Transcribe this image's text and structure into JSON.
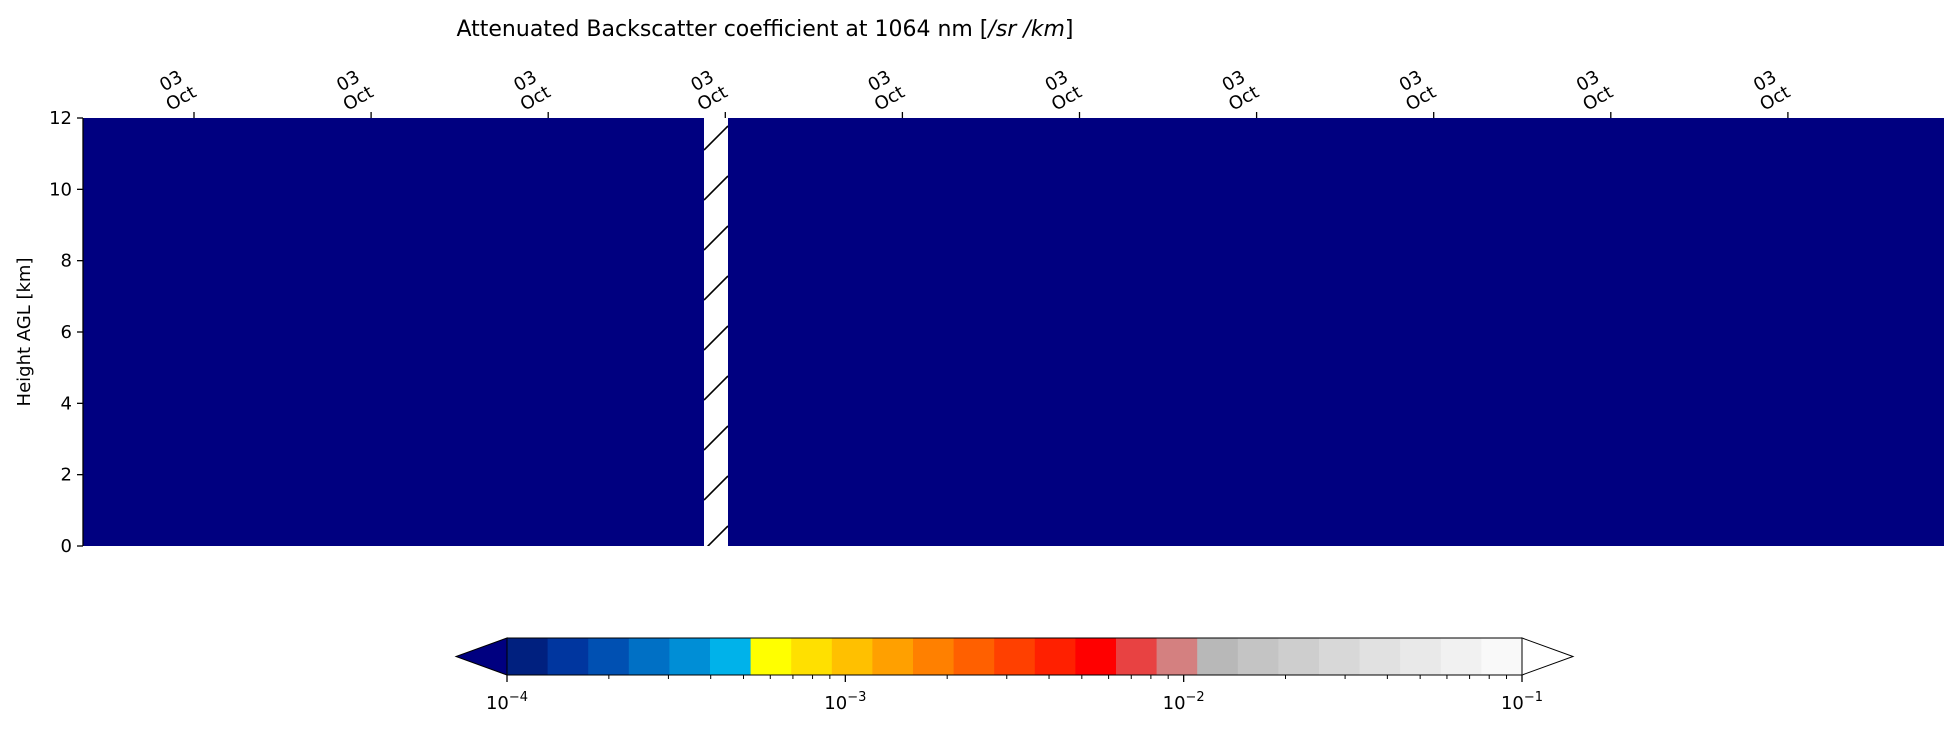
{
  "chart_data": {
    "type": "heatmap",
    "title": "Attenuated Backscatter coefficient at 1064 nm [",
    "title_units": "/sr /km",
    "title_close": "]",
    "ylabel": "Height AGL [km]",
    "xlabel": "",
    "ylim": [
      0,
      12
    ],
    "yticks": [
      0,
      2,
      4,
      6,
      8,
      10,
      12
    ],
    "x_axis_position": "top",
    "x_tick_labels": [
      {
        "day": "03",
        "month": "Oct"
      },
      {
        "day": "03",
        "month": "Oct"
      },
      {
        "day": "03",
        "month": "Oct"
      },
      {
        "day": "03",
        "month": "Oct"
      },
      {
        "day": "03",
        "month": "Oct"
      },
      {
        "day": "03",
        "month": "Oct"
      },
      {
        "day": "03",
        "month": "Oct"
      },
      {
        "day": "03",
        "month": "Oct"
      },
      {
        "day": "03",
        "month": "Oct"
      },
      {
        "day": "03",
        "month": "Oct"
      }
    ],
    "field_color": "#000080",
    "missing_data_hatch": true,
    "colorbar": {
      "orientation": "horizontal",
      "placement": "bottom",
      "scale": "log",
      "range": [
        0.0001,
        0.1
      ],
      "extend": "both",
      "tick_labels": [
        {
          "base": "10",
          "exp": "−4",
          "value": 0.0001
        },
        {
          "base": "10",
          "exp": "−3",
          "value": 0.001
        },
        {
          "base": "10",
          "exp": "−2",
          "value": 0.01
        },
        {
          "base": "10",
          "exp": "−1",
          "value": 0.1
        }
      ],
      "colors": [
        "#00207f",
        "#00369f",
        "#0050b2",
        "#0070c5",
        "#008ed6",
        "#00b2ea",
        "#ffff00",
        "#ffe000",
        "#ffc000",
        "#ffa000",
        "#ff8000",
        "#ff6000",
        "#ff4000",
        "#ff2000",
        "#ff0000",
        "#e84242",
        "#d48080",
        "#b8b8b8",
        "#c4c4c4",
        "#cecece",
        "#d8d8d8",
        "#e1e1e1",
        "#e9e9e9",
        "#f1f1f1",
        "#f9f9f9"
      ],
      "under_color": "#000080",
      "over_color": "#ffffff"
    }
  }
}
